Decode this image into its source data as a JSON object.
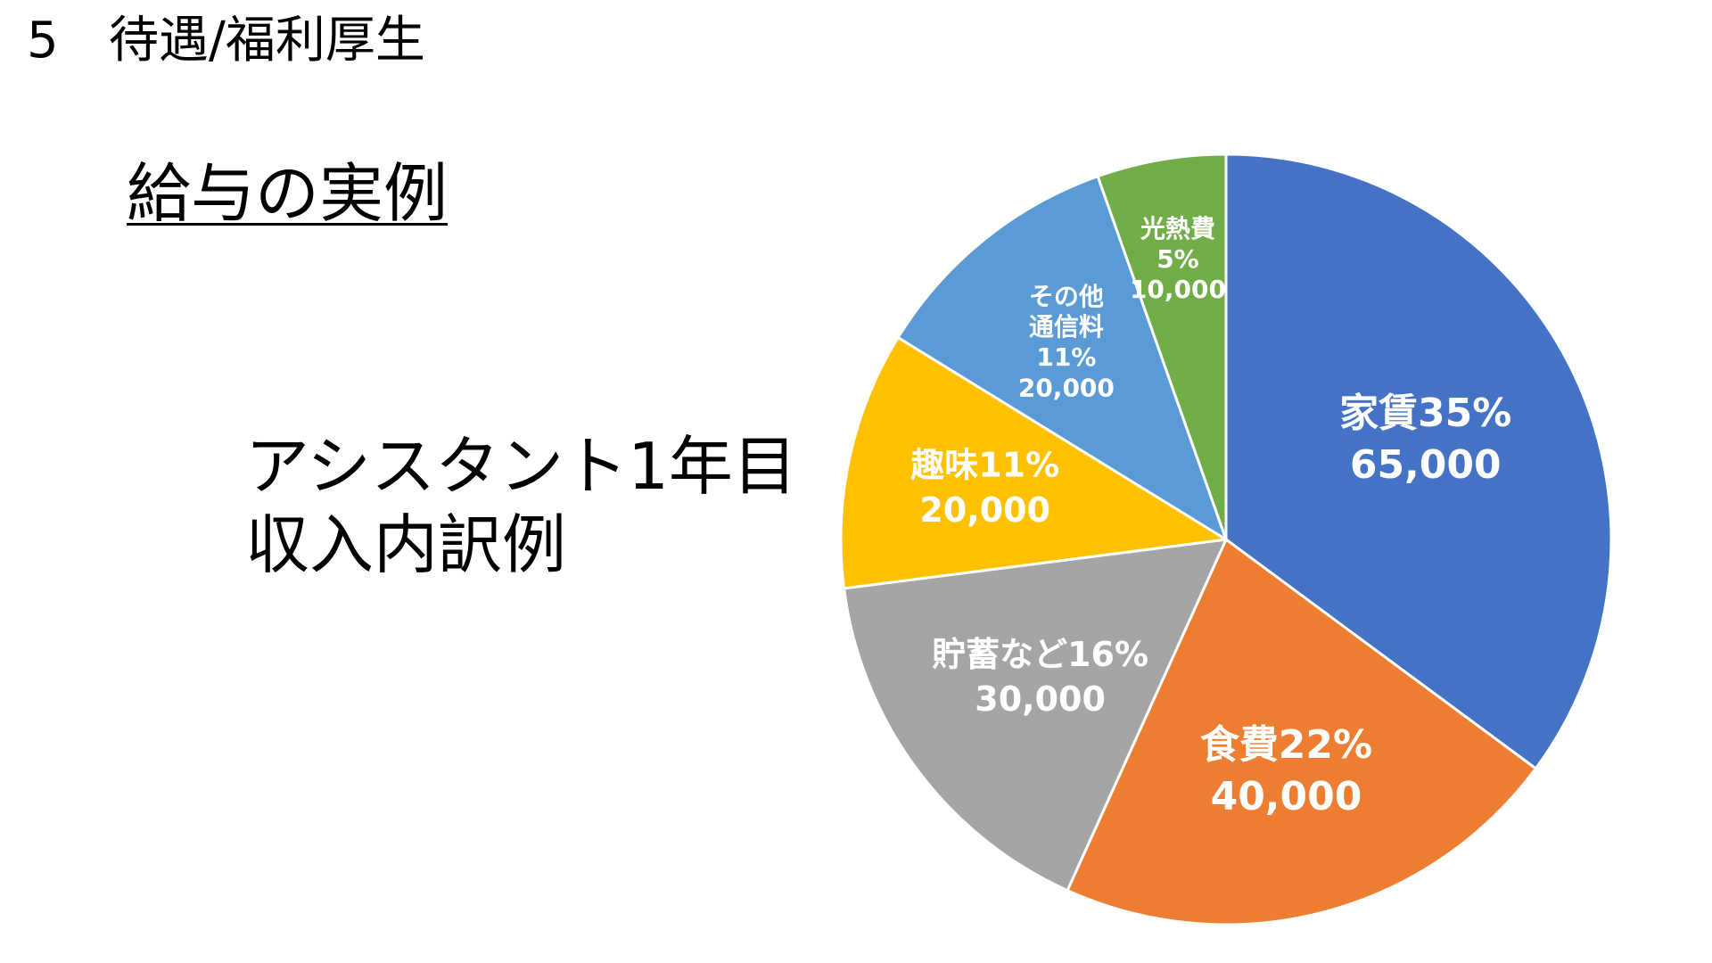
{
  "header": {
    "section_number": "5",
    "section_title": "待遇/福利厚生"
  },
  "subtitle": "給与の実例",
  "caption": {
    "line1": "アシスタント1年目",
    "line2": "収入内訳例"
  },
  "chart_data": {
    "type": "pie",
    "title": "",
    "slices": [
      {
        "label_lines": [
          "家賃35%",
          "65,000"
        ],
        "percent": 35,
        "value": 65000,
        "color": "#4472C4"
      },
      {
        "label_lines": [
          "食費22%",
          "40,000"
        ],
        "percent": 22,
        "value": 40000,
        "color": "#ED7D31"
      },
      {
        "label_lines": [
          "貯蓄など16%",
          "30,000"
        ],
        "percent": 16,
        "value": 30000,
        "color": "#A5A5A5"
      },
      {
        "label_lines": [
          "趣味11%",
          "20,000"
        ],
        "percent": 11,
        "value": 20000,
        "color": "#FFC000"
      },
      {
        "label_lines": [
          "その他",
          "通信料",
          "11%",
          "20,000"
        ],
        "percent": 11,
        "value": 20000,
        "color": "#5B9BD5"
      },
      {
        "label_lines": [
          "光熱費",
          "5%",
          "10,000"
        ],
        "percent": 5,
        "value": 10000,
        "color": "#70AD47"
      }
    ],
    "start_angle": "12 o'clock",
    "direction": "clockwise",
    "legend": "none",
    "label_color": "#FFFFFF",
    "slice_border_color": "#FFFFFF"
  }
}
